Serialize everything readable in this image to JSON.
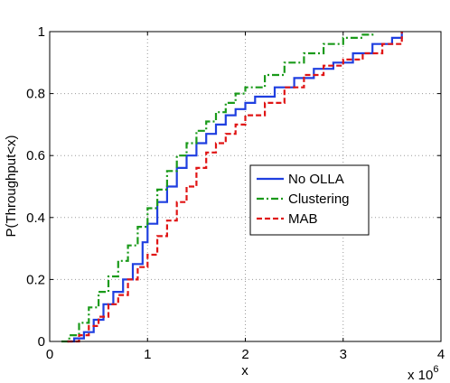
{
  "chart_data": {
    "type": "line",
    "xlabel": "x",
    "ylabel": "P(Throughput<x)",
    "x_multiplier_label": "x 10",
    "x_multiplier_exponent": "6",
    "xlim": [
      0,
      4
    ],
    "ylim": [
      0,
      1
    ],
    "x_ticks": [
      0,
      1,
      2,
      3,
      4
    ],
    "y_ticks": [
      0,
      0.2,
      0.4,
      0.6,
      0.8,
      1
    ],
    "x_tick_labels": [
      "0",
      "1",
      "2",
      "3",
      "4"
    ],
    "y_tick_labels": [
      "0",
      "0.2",
      "0.4",
      "0.6",
      "0.8",
      "1"
    ],
    "grid": true,
    "legend_position": "center-right",
    "series": [
      {
        "name": "No OLLA",
        "color": "#1f3fe0",
        "dash": "solid",
        "points": [
          [
            0.18,
            0
          ],
          [
            0.25,
            0.01
          ],
          [
            0.35,
            0.03
          ],
          [
            0.45,
            0.07
          ],
          [
            0.55,
            0.12
          ],
          [
            0.65,
            0.16
          ],
          [
            0.75,
            0.2
          ],
          [
            0.85,
            0.25
          ],
          [
            0.95,
            0.32
          ],
          [
            1.0,
            0.38
          ],
          [
            1.1,
            0.45
          ],
          [
            1.2,
            0.5
          ],
          [
            1.3,
            0.56
          ],
          [
            1.4,
            0.6
          ],
          [
            1.5,
            0.64
          ],
          [
            1.6,
            0.67
          ],
          [
            1.7,
            0.7
          ],
          [
            1.8,
            0.73
          ],
          [
            1.9,
            0.75
          ],
          [
            2.0,
            0.77
          ],
          [
            2.1,
            0.79
          ],
          [
            2.3,
            0.82
          ],
          [
            2.5,
            0.85
          ],
          [
            2.7,
            0.88
          ],
          [
            2.9,
            0.9
          ],
          [
            3.1,
            0.93
          ],
          [
            3.3,
            0.96
          ],
          [
            3.5,
            0.98
          ],
          [
            3.6,
            1.0
          ]
        ]
      },
      {
        "name": "Clustering",
        "color": "#1a9a1a",
        "dash": "dashdot",
        "points": [
          [
            0.12,
            0
          ],
          [
            0.2,
            0.02
          ],
          [
            0.3,
            0.06
          ],
          [
            0.4,
            0.11
          ],
          [
            0.5,
            0.16
          ],
          [
            0.6,
            0.21
          ],
          [
            0.7,
            0.26
          ],
          [
            0.8,
            0.31
          ],
          [
            0.9,
            0.37
          ],
          [
            1.0,
            0.43
          ],
          [
            1.1,
            0.49
          ],
          [
            1.2,
            0.55
          ],
          [
            1.3,
            0.6
          ],
          [
            1.4,
            0.64
          ],
          [
            1.5,
            0.68
          ],
          [
            1.6,
            0.71
          ],
          [
            1.7,
            0.74
          ],
          [
            1.8,
            0.77
          ],
          [
            1.9,
            0.8
          ],
          [
            2.0,
            0.82
          ],
          [
            2.2,
            0.86
          ],
          [
            2.4,
            0.9
          ],
          [
            2.6,
            0.93
          ],
          [
            2.8,
            0.96
          ],
          [
            3.0,
            0.98
          ],
          [
            3.2,
            0.99
          ],
          [
            3.3,
            1.0
          ]
        ]
      },
      {
        "name": "MAB",
        "color": "#e01515",
        "dash": "dashed",
        "points": [
          [
            0.18,
            0
          ],
          [
            0.3,
            0.02
          ],
          [
            0.4,
            0.05
          ],
          [
            0.5,
            0.08
          ],
          [
            0.6,
            0.12
          ],
          [
            0.7,
            0.15
          ],
          [
            0.8,
            0.2
          ],
          [
            0.9,
            0.24
          ],
          [
            1.0,
            0.28
          ],
          [
            1.1,
            0.34
          ],
          [
            1.2,
            0.39
          ],
          [
            1.3,
            0.45
          ],
          [
            1.4,
            0.5
          ],
          [
            1.5,
            0.56
          ],
          [
            1.6,
            0.61
          ],
          [
            1.7,
            0.64
          ],
          [
            1.8,
            0.67
          ],
          [
            1.9,
            0.7
          ],
          [
            2.0,
            0.73
          ],
          [
            2.2,
            0.77
          ],
          [
            2.4,
            0.82
          ],
          [
            2.6,
            0.86
          ],
          [
            2.8,
            0.89
          ],
          [
            3.0,
            0.91
          ],
          [
            3.2,
            0.93
          ],
          [
            3.4,
            0.96
          ],
          [
            3.6,
            1.0
          ]
        ]
      }
    ]
  }
}
